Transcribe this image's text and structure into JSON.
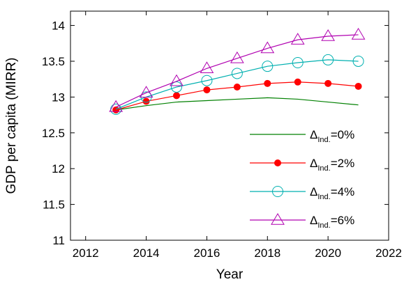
{
  "chart_data": {
    "type": "line",
    "xlabel": "Year",
    "ylabel": "GDP per capita (MIRR)",
    "xlim": [
      2011.5,
      2022
    ],
    "ylim": [
      11,
      14.2
    ],
    "xticks": [
      2012,
      2014,
      2016,
      2018,
      2020,
      2022
    ],
    "yticks": [
      11,
      11.5,
      12,
      12.5,
      13,
      13.5,
      14
    ],
    "xtick_labels": [
      "2012",
      "2014",
      "2016",
      "2018",
      "2020",
      "2022"
    ],
    "ytick_labels": [
      "11",
      "11.5",
      "12",
      "12.5",
      "13",
      "13.5",
      "14"
    ],
    "grid": false,
    "legend_position": "bottom-right",
    "x": [
      2013,
      2014,
      2015,
      2016,
      2017,
      2018,
      2019,
      2020,
      2021
    ],
    "series": [
      {
        "name_main": "Δ",
        "name_sub": "Ind.",
        "name_tail": "=0%",
        "color": "#008000",
        "marker": "none",
        "values": [
          12.82,
          12.88,
          12.93,
          12.95,
          12.97,
          12.99,
          12.97,
          12.93,
          12.89
        ]
      },
      {
        "name_main": "Δ",
        "name_sub": "Ind.",
        "name_tail": "=2%",
        "color": "#ff0000",
        "marker": "dot",
        "values": [
          12.82,
          12.94,
          13.02,
          13.1,
          13.14,
          13.19,
          13.21,
          13.19,
          13.15
        ]
      },
      {
        "name_main": "Δ",
        "name_sub": "Ind.",
        "name_tail": "=4%",
        "color": "#00b0b0",
        "marker": "circle",
        "values": [
          12.83,
          13.0,
          13.14,
          13.23,
          13.33,
          13.43,
          13.48,
          13.52,
          13.5
        ]
      },
      {
        "name_main": "Δ",
        "name_sub": "Ind.",
        "name_tail": "=6%",
        "color": "#b000b0",
        "marker": "triangle",
        "values": [
          12.86,
          13.06,
          13.22,
          13.4,
          13.54,
          13.68,
          13.8,
          13.85,
          13.87
        ]
      }
    ]
  }
}
